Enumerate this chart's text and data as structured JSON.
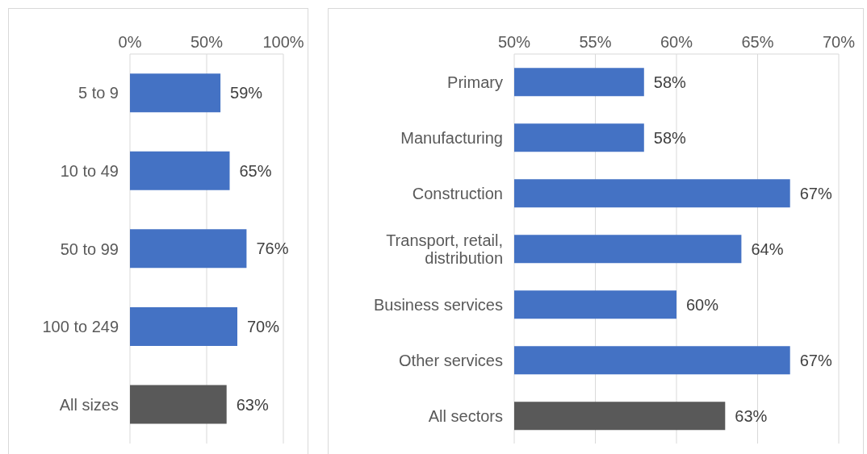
{
  "chart_data": [
    {
      "type": "bar",
      "orientation": "horizontal",
      "categories": [
        "5 to 9",
        "10 to 49",
        "50 to 99",
        "100 to 249",
        "All sizes"
      ],
      "values": [
        59,
        65,
        76,
        70,
        63
      ],
      "colors": [
        "#4472c4",
        "#4472c4",
        "#4472c4",
        "#4472c4",
        "#595959"
      ],
      "value_labels": [
        "59%",
        "65%",
        "76%",
        "70%",
        "63%"
      ],
      "xlim": [
        0,
        100
      ],
      "xticks": [
        {
          "value": 0,
          "label": "0%"
        },
        {
          "value": 50,
          "label": "50%"
        },
        {
          "value": 100,
          "label": "100%"
        }
      ],
      "grid": "x"
    },
    {
      "type": "bar",
      "orientation": "horizontal",
      "categories": [
        "Primary",
        "Manufacturing",
        "Construction",
        "Transport, retail, distribution",
        "Business services",
        "Other services",
        "All sectors"
      ],
      "values": [
        58,
        58,
        67,
        64,
        60,
        67,
        63
      ],
      "colors": [
        "#4472c4",
        "#4472c4",
        "#4472c4",
        "#4472c4",
        "#4472c4",
        "#4472c4",
        "#595959"
      ],
      "value_labels": [
        "58%",
        "58%",
        "67%",
        "64%",
        "60%",
        "67%",
        "63%"
      ],
      "xlim": [
        50,
        70
      ],
      "xticks": [
        {
          "value": 50,
          "label": "50%"
        },
        {
          "value": 55,
          "label": "55%"
        },
        {
          "value": 60,
          "label": "60%"
        },
        {
          "value": 65,
          "label": "65%"
        },
        {
          "value": 70,
          "label": "70%"
        }
      ],
      "grid": "x"
    }
  ]
}
